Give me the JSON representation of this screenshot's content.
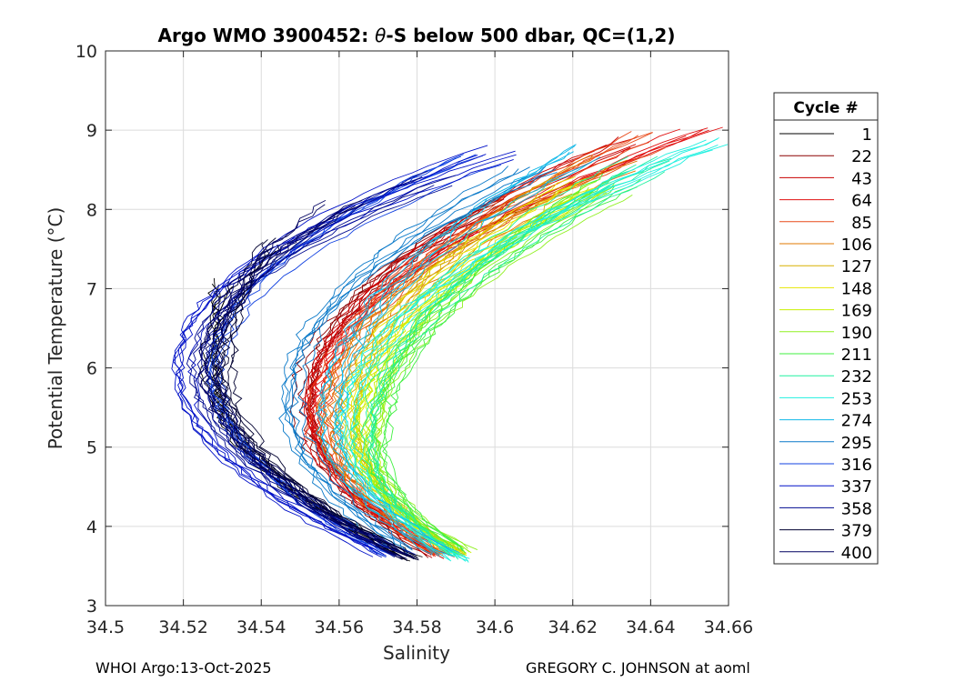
{
  "chart_data": {
    "type": "line",
    "title_prefix": "Argo WMO 3900452: ",
    "title_symbol": "θ",
    "title_suffix": "-S below 500 dbar,  QC=(1,2)",
    "xlabel": "Salinity",
    "ylabel": "Potential Temperature (°C)",
    "xlim": [
      34.5,
      34.66
    ],
    "ylim": [
      3,
      10
    ],
    "xticks": [
      34.5,
      34.52,
      34.54,
      34.56,
      34.58,
      34.6,
      34.62,
      34.64,
      34.66
    ],
    "xtick_labels": [
      "34.5",
      "34.52",
      "34.54",
      "34.56",
      "34.58",
      "34.6",
      "34.62",
      "34.64",
      "34.66"
    ],
    "yticks": [
      3,
      4,
      5,
      6,
      7,
      8,
      9,
      10
    ],
    "ytick_labels": [
      "3",
      "4",
      "5",
      "6",
      "7",
      "8",
      "9",
      "10"
    ],
    "grid": true,
    "legend_title": "Cycle #",
    "legend_position": "right-outside",
    "legend": [
      {
        "label": "1",
        "color": "#000000"
      },
      {
        "label": "22",
        "color": "#8c0000"
      },
      {
        "label": "43",
        "color": "#c80000"
      },
      {
        "label": "64",
        "color": "#e01010"
      },
      {
        "label": "85",
        "color": "#e84a1a"
      },
      {
        "label": "106",
        "color": "#e07800"
      },
      {
        "label": "127",
        "color": "#d8b000"
      },
      {
        "label": "148",
        "color": "#e6e600"
      },
      {
        "label": "169",
        "color": "#c8f000"
      },
      {
        "label": "190",
        "color": "#90f020"
      },
      {
        "label": "211",
        "color": "#40f040"
      },
      {
        "label": "232",
        "color": "#20f0a0"
      },
      {
        "label": "253",
        "color": "#20f0e0"
      },
      {
        "label": "274",
        "color": "#10b8e8"
      },
      {
        "label": "295",
        "color": "#0878c8"
      },
      {
        "label": "316",
        "color": "#1040e0"
      },
      {
        "label": "337",
        "color": "#0010c8"
      },
      {
        "label": "358",
        "color": "#000a90"
      },
      {
        "label": "379",
        "color": "#000030"
      },
      {
        "label": "400",
        "color": "#000060"
      }
    ],
    "series": [
      {
        "name": "1",
        "color": "#000000",
        "s_min": 34.527,
        "t_min_s": 6.0,
        "s_top": 34.528,
        "t_top": 7.1,
        "s_bottom": 34.578,
        "t_bottom": 3.6
      },
      {
        "name": "22",
        "color": "#8c0000",
        "s_min": 34.55,
        "t_min_s": 5.6,
        "s_top": 34.605,
        "t_top": 8.2,
        "s_bottom": 34.584,
        "t_bottom": 3.62
      },
      {
        "name": "43",
        "color": "#c80000",
        "s_min": 34.552,
        "t_min_s": 5.5,
        "s_top": 34.63,
        "t_top": 8.8,
        "s_bottom": 34.586,
        "t_bottom": 3.62
      },
      {
        "name": "64",
        "color": "#e01010",
        "s_min": 34.553,
        "t_min_s": 5.4,
        "s_top": 34.653,
        "t_top": 9.05,
        "s_bottom": 34.587,
        "t_bottom": 3.65
      },
      {
        "name": "85",
        "color": "#e84a1a",
        "s_min": 34.555,
        "t_min_s": 5.4,
        "s_top": 34.64,
        "t_top": 8.9,
        "s_bottom": 34.587,
        "t_bottom": 3.65
      },
      {
        "name": "106",
        "color": "#e07800",
        "s_min": 34.558,
        "t_min_s": 5.3,
        "s_top": 34.63,
        "t_top": 8.6,
        "s_bottom": 34.588,
        "t_bottom": 3.65
      },
      {
        "name": "127",
        "color": "#d8b000",
        "s_min": 34.562,
        "t_min_s": 5.3,
        "s_top": 34.62,
        "t_top": 8.3,
        "s_bottom": 34.589,
        "t_bottom": 3.66
      },
      {
        "name": "148",
        "color": "#e6e600",
        "s_min": 34.564,
        "t_min_s": 5.2,
        "s_top": 34.625,
        "t_top": 8.3,
        "s_bottom": 34.59,
        "t_bottom": 3.66
      },
      {
        "name": "169",
        "color": "#c8f000",
        "s_min": 34.567,
        "t_min_s": 5.1,
        "s_top": 34.628,
        "t_top": 8.3,
        "s_bottom": 34.591,
        "t_bottom": 3.67
      },
      {
        "name": "190",
        "color": "#90f020",
        "s_min": 34.569,
        "t_min_s": 5.0,
        "s_top": 34.63,
        "t_top": 8.3,
        "s_bottom": 34.592,
        "t_bottom": 3.68
      },
      {
        "name": "211",
        "color": "#40f040",
        "s_min": 34.57,
        "t_min_s": 5.0,
        "s_top": 34.632,
        "t_top": 8.4,
        "s_bottom": 34.592,
        "t_bottom": 3.68
      },
      {
        "name": "232",
        "color": "#20f0a0",
        "s_min": 34.566,
        "t_min_s": 5.1,
        "s_top": 34.64,
        "t_top": 8.6,
        "s_bottom": 34.591,
        "t_bottom": 3.62
      },
      {
        "name": "253",
        "color": "#20f0e0",
        "s_min": 34.562,
        "t_min_s": 5.2,
        "s_top": 34.655,
        "t_top": 8.85,
        "s_bottom": 34.592,
        "t_bottom": 3.58
      },
      {
        "name": "274",
        "color": "#10b8e8",
        "s_min": 34.558,
        "t_min_s": 5.3,
        "s_top": 34.623,
        "t_top": 8.7,
        "s_bottom": 34.587,
        "t_bottom": 3.65
      },
      {
        "name": "295",
        "color": "#0878c8",
        "s_min": 34.548,
        "t_min_s": 5.6,
        "s_top": 34.61,
        "t_top": 8.55,
        "s_bottom": 34.578,
        "t_bottom": 3.68
      },
      {
        "name": "316",
        "color": "#1040e0",
        "s_min": 34.528,
        "t_min_s": 5.9,
        "s_top": 34.595,
        "t_top": 8.6,
        "s_bottom": 34.574,
        "t_bottom": 3.65
      },
      {
        "name": "337",
        "color": "#0010c8",
        "s_min": 34.52,
        "t_min_s": 6.0,
        "s_top": 34.6,
        "t_top": 8.7,
        "s_bottom": 34.572,
        "t_bottom": 3.63
      },
      {
        "name": "358",
        "color": "#000a90",
        "s_min": 34.525,
        "t_min_s": 6.0,
        "s_top": 34.585,
        "t_top": 8.4,
        "s_bottom": 34.577,
        "t_bottom": 3.62
      },
      {
        "name": "379",
        "color": "#000030",
        "s_min": 34.53,
        "t_min_s": 6.0,
        "s_top": 34.545,
        "t_top": 7.6,
        "s_bottom": 34.579,
        "t_bottom": 3.58
      },
      {
        "name": "400",
        "color": "#000060",
        "s_min": 34.527,
        "t_min_s": 6.0,
        "s_top": 34.56,
        "t_top": 8.0,
        "s_bottom": 34.578,
        "t_bottom": 3.6
      }
    ]
  },
  "footer": {
    "left": "WHOI Argo:13-Oct-2025",
    "right": "GREGORY C. JOHNSON at aoml"
  }
}
